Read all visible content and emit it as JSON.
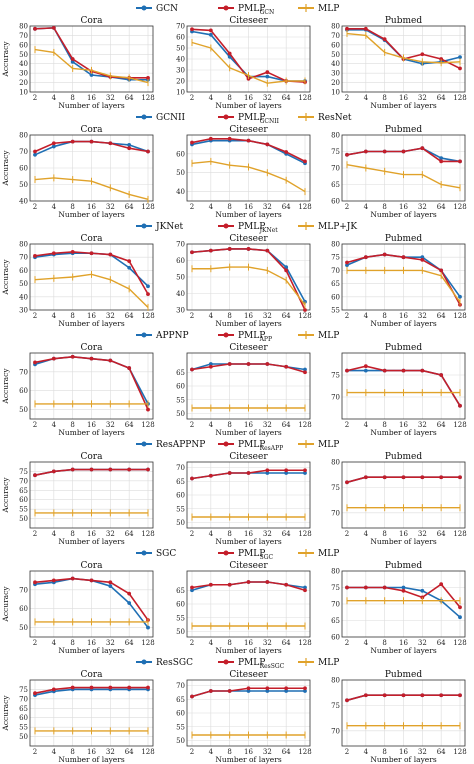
{
  "colors": {
    "blue": "#1f6fb4",
    "red": "#c41e2a",
    "orange": "#e0a22a",
    "grid": "#dcdcdc",
    "axis": "#333333"
  },
  "x_ticks": [
    "2",
    "4",
    "8",
    "16",
    "32",
    "64",
    "128"
  ],
  "xlabel": "Number of layers",
  "ylabel": "Accuracy",
  "datasets": [
    "Cora",
    "Citeseer",
    "Pubmed"
  ],
  "chart_data": [
    {
      "type": "line",
      "legend": [
        {
          "name": "GCN",
          "sub": ""
        },
        {
          "name": "PMLP",
          "sub": "GCN"
        },
        {
          "name": "MLP",
          "sub": ""
        }
      ],
      "panels": [
        {
          "title": "Cora",
          "ylim": [
            10,
            80
          ],
          "yticks": [
            10,
            20,
            30,
            40,
            50,
            60,
            70,
            80
          ],
          "series": [
            [
              77,
              78,
              42,
              28,
              26,
              23,
              23
            ],
            [
              77,
              78,
              45,
              32,
              26,
              25,
              25
            ],
            [
              55,
              52,
              35,
              33,
              27,
              25,
              20
            ]
          ]
        },
        {
          "title": "Citeseer",
          "ylim": [
            10,
            70
          ],
          "yticks": [
            10,
            20,
            30,
            40,
            50,
            60,
            70
          ],
          "series": [
            [
              65,
              62,
              42,
              24,
              24,
              20,
              20
            ],
            [
              67,
              66,
              45,
              22,
              28,
              20,
              19
            ],
            [
              55,
              50,
              32,
              25,
              18,
              20,
              20
            ]
          ]
        },
        {
          "title": "Pubmed",
          "ylim": [
            10,
            80
          ],
          "yticks": [
            10,
            20,
            30,
            40,
            50,
            60,
            70,
            80
          ],
          "series": [
            [
              76,
              76,
              65,
              45,
              40,
              42,
              47
            ],
            [
              77,
              77,
              66,
              45,
              50,
              45,
              35
            ],
            [
              72,
              70,
              52,
              46,
              42,
              41,
              42
            ]
          ]
        }
      ]
    },
    {
      "type": "line",
      "legend": [
        {
          "name": "GCNII",
          "sub": ""
        },
        {
          "name": "PMLP",
          "sub": "GCNII"
        },
        {
          "name": "ResNet",
          "sub": ""
        }
      ],
      "panels": [
        {
          "title": "Cora",
          "ylim": [
            40,
            80
          ],
          "yticks": [
            40,
            50,
            60,
            70,
            80
          ],
          "series": [
            [
              68,
              73,
              76,
              76,
              75,
              74,
              70
            ],
            [
              70,
              75,
              76,
              76,
              75,
              72,
              70
            ],
            [
              53,
              54,
              53,
              52,
              48,
              44,
              41
            ]
          ]
        },
        {
          "title": "Citeseer",
          "ylim": [
            35,
            70
          ],
          "yticks": [
            40,
            50,
            60
          ],
          "series": [
            [
              65,
              67,
              67,
              67,
              65,
              60,
              55
            ],
            [
              66,
              68,
              68,
              67,
              65,
              61,
              56
            ],
            [
              55,
              56,
              54,
              53,
              50,
              46,
              40
            ]
          ]
        },
        {
          "title": "Pubmed",
          "ylim": [
            60,
            80
          ],
          "yticks": [
            60,
            65,
            70,
            75,
            80
          ],
          "series": [
            [
              74,
              75,
              75,
              75,
              76,
              73,
              72
            ],
            [
              74,
              75,
              75,
              75,
              76,
              72,
              72
            ],
            [
              71,
              70,
              69,
              68,
              68,
              65,
              64
            ]
          ]
        }
      ]
    },
    {
      "type": "line",
      "legend": [
        {
          "name": "JKNet",
          "sub": ""
        },
        {
          "name": "PMLP",
          "sub": "JKNet"
        },
        {
          "name": "MLP+JK",
          "sub": ""
        }
      ],
      "panels": [
        {
          "title": "Cora",
          "ylim": [
            30,
            80
          ],
          "yticks": [
            30,
            40,
            50,
            60,
            70,
            80
          ],
          "series": [
            [
              70,
              72,
              73,
              73,
              72,
              62,
              48
            ],
            [
              71,
              73,
              74,
              73,
              72,
              67,
              42
            ],
            [
              53,
              54,
              55,
              57,
              53,
              46,
              32
            ]
          ]
        },
        {
          "title": "Citeseer",
          "ylim": [
            30,
            70
          ],
          "yticks": [
            30,
            40,
            50,
            60,
            70
          ],
          "series": [
            [
              65,
              66,
              67,
              67,
              66,
              56,
              35
            ],
            [
              65,
              66,
              67,
              67,
              66,
              54,
              30
            ],
            [
              55,
              55,
              56,
              56,
              54,
              48,
              33
            ]
          ]
        },
        {
          "title": "Pubmed",
          "ylim": [
            55,
            80
          ],
          "yticks": [
            55,
            60,
            65,
            70,
            75,
            80
          ],
          "series": [
            [
              72,
              75,
              76,
              75,
              75,
              70,
              60
            ],
            [
              73,
              75,
              76,
              75,
              74,
              70,
              57
            ],
            [
              70,
              70,
              70,
              70,
              70,
              68,
              58
            ]
          ]
        }
      ]
    },
    {
      "type": "line",
      "legend": [
        {
          "name": "APPNP",
          "sub": ""
        },
        {
          "name": "PMLP",
          "sub": "APP"
        },
        {
          "name": "MLP",
          "sub": ""
        }
      ],
      "panels": [
        {
          "title": "Cora",
          "ylim": [
            45,
            80
          ],
          "yticks": [
            50,
            60,
            70
          ],
          "series": [
            [
              74,
              77,
              78,
              77,
              76,
              72,
              53
            ],
            [
              75,
              77,
              78,
              77,
              76,
              72,
              50
            ],
            [
              53,
              53,
              53,
              53,
              53,
              53,
              53
            ]
          ]
        },
        {
          "title": "Citeseer",
          "ylim": [
            48,
            72
          ],
          "yticks": [
            50,
            55,
            60,
            65
          ],
          "series": [
            [
              66,
              68,
              68,
              68,
              68,
              67,
              66
            ],
            [
              66,
              67,
              68,
              68,
              68,
              67,
              65
            ],
            [
              52,
              52,
              52,
              52,
              52,
              52,
              52
            ]
          ]
        },
        {
          "title": "Pubmed",
          "ylim": [
            65,
            80
          ],
          "yticks": [
            70,
            75
          ],
          "series": [
            [
              76,
              76,
              76,
              76,
              76,
              75,
              68
            ],
            [
              76,
              77,
              76,
              76,
              76,
              75,
              68
            ],
            [
              71,
              71,
              71,
              71,
              71,
              71,
              71
            ]
          ]
        }
      ]
    },
    {
      "type": "line",
      "legend": [
        {
          "name": "ResAPPNP",
          "sub": ""
        },
        {
          "name": "PMLP",
          "sub": "ResAPP"
        },
        {
          "name": "MLP",
          "sub": ""
        }
      ],
      "panels": [
        {
          "title": "Cora",
          "ylim": [
            45,
            80
          ],
          "yticks": [
            50,
            55,
            60,
            65,
            70,
            75
          ],
          "series": [
            [
              73,
              75,
              76,
              76,
              76,
              76,
              76
            ],
            [
              73,
              75,
              76,
              76,
              76,
              76,
              76
            ],
            [
              53,
              53,
              53,
              53,
              53,
              53,
              53
            ]
          ]
        },
        {
          "title": "Citeseer",
          "ylim": [
            48,
            72
          ],
          "yticks": [
            50,
            55,
            60,
            65,
            70
          ],
          "series": [
            [
              66,
              67,
              68,
              68,
              68,
              68,
              68
            ],
            [
              66,
              67,
              68,
              68,
              69,
              69,
              69
            ],
            [
              52,
              52,
              52,
              52,
              52,
              52,
              52
            ]
          ]
        },
        {
          "title": "Pubmed",
          "ylim": [
            67,
            80
          ],
          "yticks": [
            70,
            75,
            80
          ],
          "series": [
            [
              76,
              77,
              77,
              77,
              77,
              77,
              77
            ],
            [
              76,
              77,
              77,
              77,
              77,
              77,
              77
            ],
            [
              71,
              71,
              71,
              71,
              71,
              71,
              71
            ]
          ]
        }
      ]
    },
    {
      "type": "line",
      "legend": [
        {
          "name": "SGC",
          "sub": ""
        },
        {
          "name": "PMLP",
          "sub": "SGC"
        },
        {
          "name": "MLP",
          "sub": ""
        }
      ],
      "panels": [
        {
          "title": "Cora",
          "ylim": [
            45,
            80
          ],
          "yticks": [
            50,
            60,
            70
          ],
          "series": [
            [
              73,
              74,
              76,
              75,
              72,
              63,
              50
            ],
            [
              74,
              75,
              76,
              75,
              74,
              68,
              54
            ],
            [
              53,
              53,
              53,
              53,
              53,
              53,
              53
            ]
          ]
        },
        {
          "title": "Citeseer",
          "ylim": [
            48,
            72
          ],
          "yticks": [
            50,
            55,
            60,
            65
          ],
          "series": [
            [
              65,
              67,
              67,
              68,
              68,
              67,
              66
            ],
            [
              66,
              67,
              67,
              68,
              68,
              67,
              65
            ],
            [
              52,
              52,
              52,
              52,
              52,
              52,
              52
            ]
          ]
        },
        {
          "title": "Pubmed",
          "ylim": [
            60,
            80
          ],
          "yticks": [
            60,
            65,
            70,
            75,
            80
          ],
          "series": [
            [
              75,
              75,
              75,
              75,
              74,
              71,
              66
            ],
            [
              75,
              75,
              75,
              74,
              72,
              76,
              69
            ],
            [
              71,
              71,
              71,
              71,
              71,
              71,
              71
            ]
          ]
        }
      ]
    },
    {
      "type": "line",
      "legend": [
        {
          "name": "ResSGC",
          "sub": ""
        },
        {
          "name": "PMLP",
          "sub": "ResSGC"
        },
        {
          "name": "MLP",
          "sub": ""
        }
      ],
      "panels": [
        {
          "title": "Cora",
          "ylim": [
            45,
            80
          ],
          "yticks": [
            50,
            55,
            60,
            65,
            70,
            75
          ],
          "series": [
            [
              72,
              74,
              75,
              75,
              75,
              75,
              75
            ],
            [
              73,
              75,
              76,
              76,
              76,
              76,
              76
            ],
            [
              53,
              53,
              53,
              53,
              53,
              53,
              53
            ]
          ]
        },
        {
          "title": "Citeseer",
          "ylim": [
            48,
            72
          ],
          "yticks": [
            50,
            55,
            60,
            65,
            70
          ],
          "series": [
            [
              66,
              68,
              68,
              68,
              68,
              68,
              68
            ],
            [
              66,
              68,
              68,
              69,
              69,
              69,
              69
            ],
            [
              52,
              52,
              52,
              52,
              52,
              52,
              52
            ]
          ]
        },
        {
          "title": "Pubmed",
          "ylim": [
            67,
            80
          ],
          "yticks": [
            70,
            75,
            80
          ],
          "series": [
            [
              76,
              77,
              77,
              77,
              77,
              77,
              77
            ],
            [
              76,
              77,
              77,
              77,
              77,
              77,
              77
            ],
            [
              71,
              71,
              71,
              71,
              71,
              71,
              71
            ]
          ]
        }
      ]
    }
  ]
}
